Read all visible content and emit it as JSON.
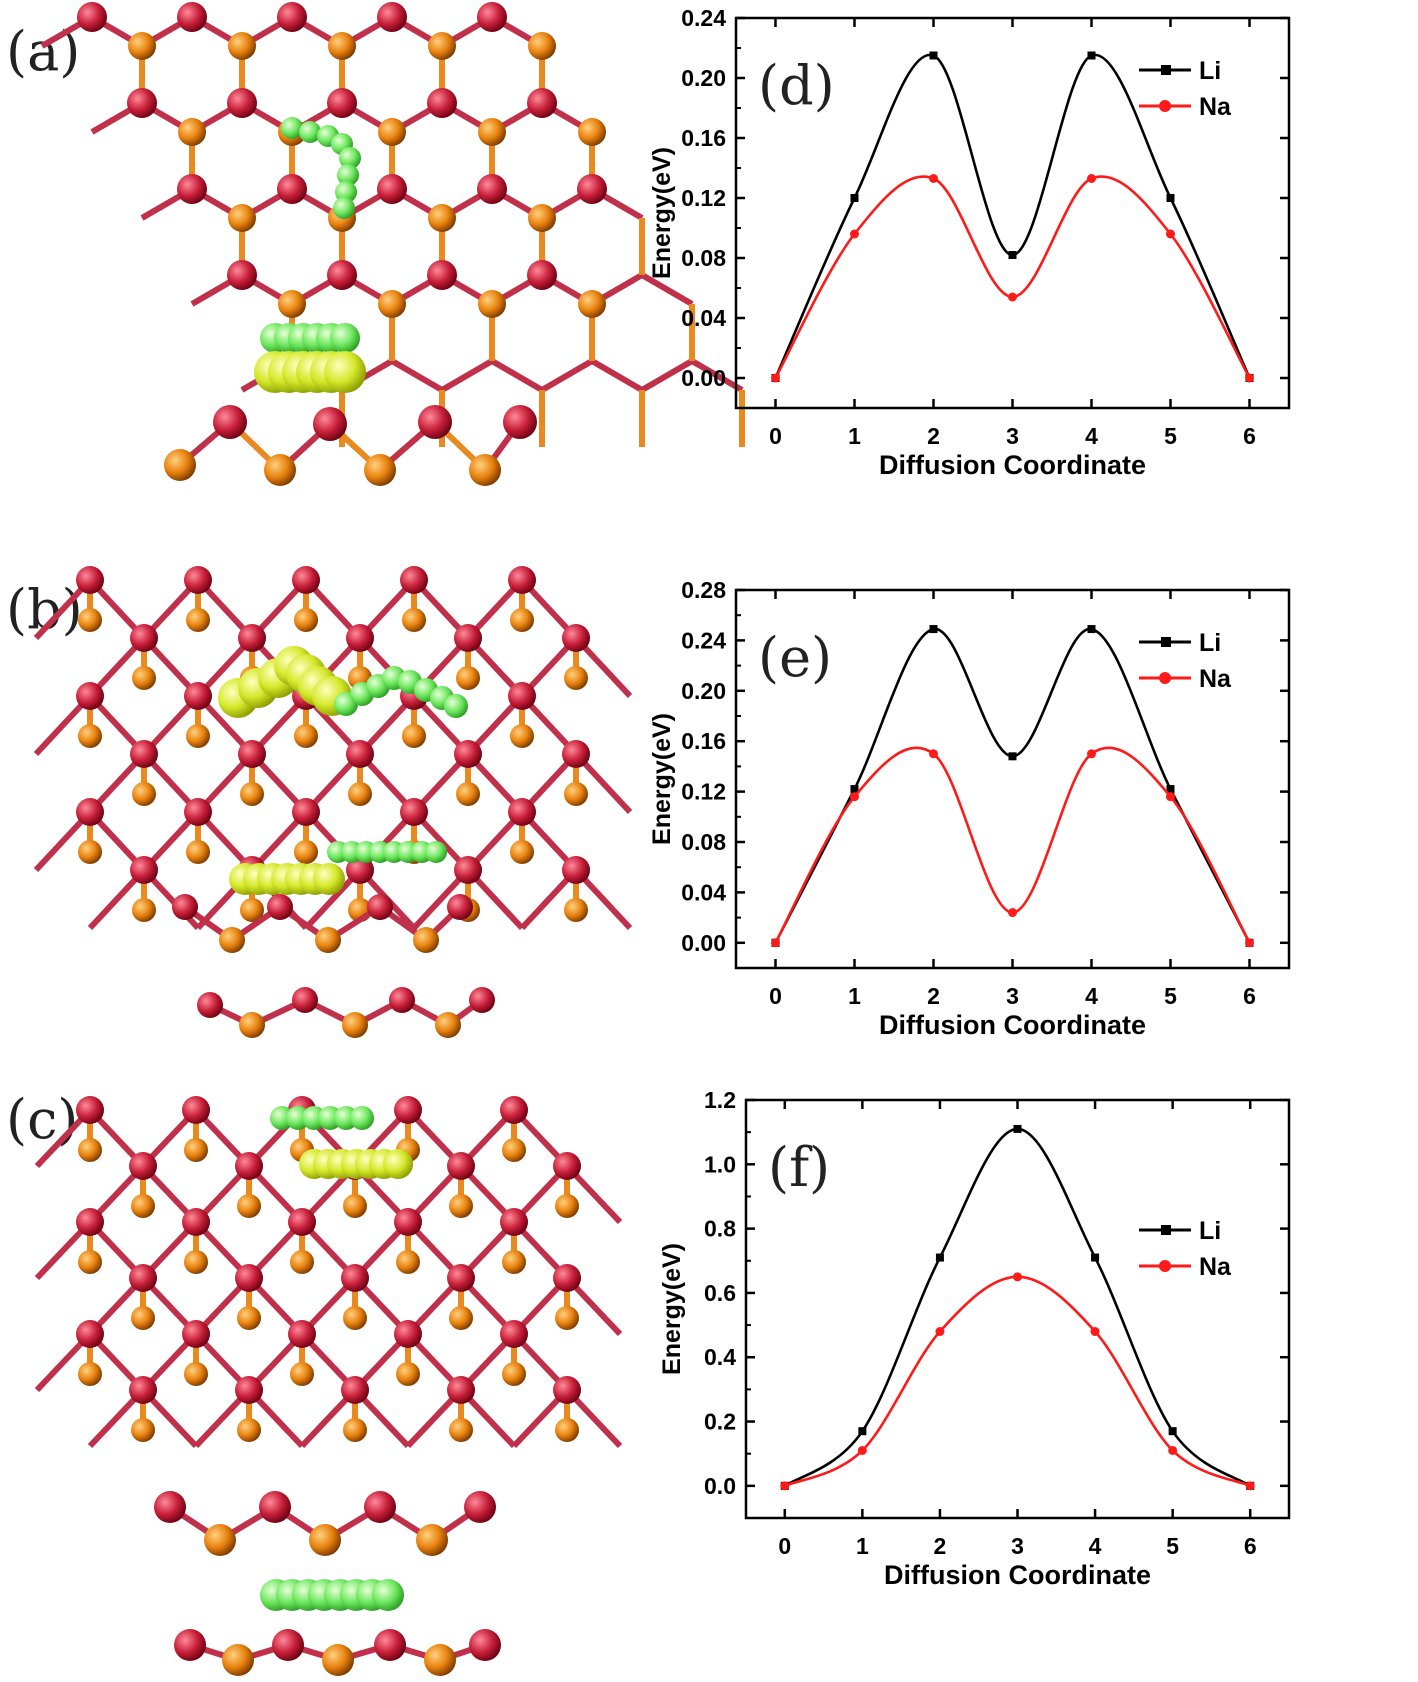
{
  "panels": {
    "a": "(a)",
    "b": "(b)",
    "c": "(c)"
  },
  "colors": {
    "atom_top": "#c8203a",
    "atom_bottom": "#e8820e",
    "bond_top": "#c0304a",
    "bond_bottom": "#e88a20",
    "li_path": "#6fe860",
    "na_path": "#d4e82a",
    "li_series": "#000000",
    "na_series": "#ff1a1a"
  },
  "chart_data": [
    {
      "type": "line",
      "panel_label": "(d)",
      "x": [
        0,
        1,
        2,
        3,
        4,
        5,
        6
      ],
      "xlabel": "Diffusion Coordinate",
      "ylabel": "Energy(eV)",
      "xlim": [
        -0.5,
        6.5
      ],
      "ylim": [
        -0.02,
        0.24
      ],
      "xticks": [
        "0",
        "1",
        "2",
        "3",
        "4",
        "5",
        "6"
      ],
      "yticks": [
        "0.00",
        "0.04",
        "0.08",
        "0.12",
        "0.16",
        "0.20",
        "0.24"
      ],
      "ytick_values": [
        0.0,
        0.04,
        0.08,
        0.12,
        0.16,
        0.2,
        0.24
      ],
      "legend_position": "top-right",
      "series": [
        {
          "name": "Li",
          "values": [
            0.0,
            0.12,
            0.215,
            0.082,
            0.215,
            0.12,
            0.0
          ]
        },
        {
          "name": "Na",
          "values": [
            0.0,
            0.096,
            0.133,
            0.054,
            0.133,
            0.096,
            0.0
          ]
        }
      ]
    },
    {
      "type": "line",
      "panel_label": "(e)",
      "x": [
        0,
        1,
        2,
        3,
        4,
        5,
        6
      ],
      "xlabel": "Diffusion Coordinate",
      "ylabel": "Energy(eV)",
      "xlim": [
        -0.5,
        6.5
      ],
      "ylim": [
        -0.02,
        0.28
      ],
      "xticks": [
        "0",
        "1",
        "2",
        "3",
        "4",
        "5",
        "6"
      ],
      "yticks": [
        "0.00",
        "0.04",
        "0.08",
        "0.12",
        "0.16",
        "0.20",
        "0.24",
        "0.28"
      ],
      "ytick_values": [
        0.0,
        0.04,
        0.08,
        0.12,
        0.16,
        0.2,
        0.24,
        0.28
      ],
      "legend_position": "top-right",
      "series": [
        {
          "name": "Li",
          "values": [
            0.0,
            0.122,
            0.249,
            0.148,
            0.249,
            0.122,
            0.0
          ]
        },
        {
          "name": "Na",
          "values": [
            0.0,
            0.116,
            0.15,
            0.024,
            0.15,
            0.116,
            0.0
          ]
        }
      ]
    },
    {
      "type": "line",
      "panel_label": "(f)",
      "x": [
        0,
        1,
        2,
        3,
        4,
        5,
        6
      ],
      "xlabel": "Diffusion Coordinate",
      "ylabel": "Energy(eV)",
      "xlim": [
        -0.5,
        6.5
      ],
      "ylim": [
        -0.1,
        1.2
      ],
      "xticks": [
        "0",
        "1",
        "2",
        "3",
        "4",
        "5",
        "6"
      ],
      "yticks": [
        "0.0",
        "0.2",
        "0.4",
        "0.6",
        "0.8",
        "1.0",
        "1.2"
      ],
      "ytick_values": [
        0.0,
        0.2,
        0.4,
        0.6,
        0.8,
        1.0,
        1.2
      ],
      "legend_position": "top-right",
      "series": [
        {
          "name": "Li",
          "values": [
            0.0,
            0.17,
            0.71,
            1.11,
            0.71,
            0.17,
            0.0
          ]
        },
        {
          "name": "Na",
          "values": [
            0.0,
            0.11,
            0.48,
            0.65,
            0.48,
            0.11,
            0.0
          ]
        }
      ]
    }
  ]
}
